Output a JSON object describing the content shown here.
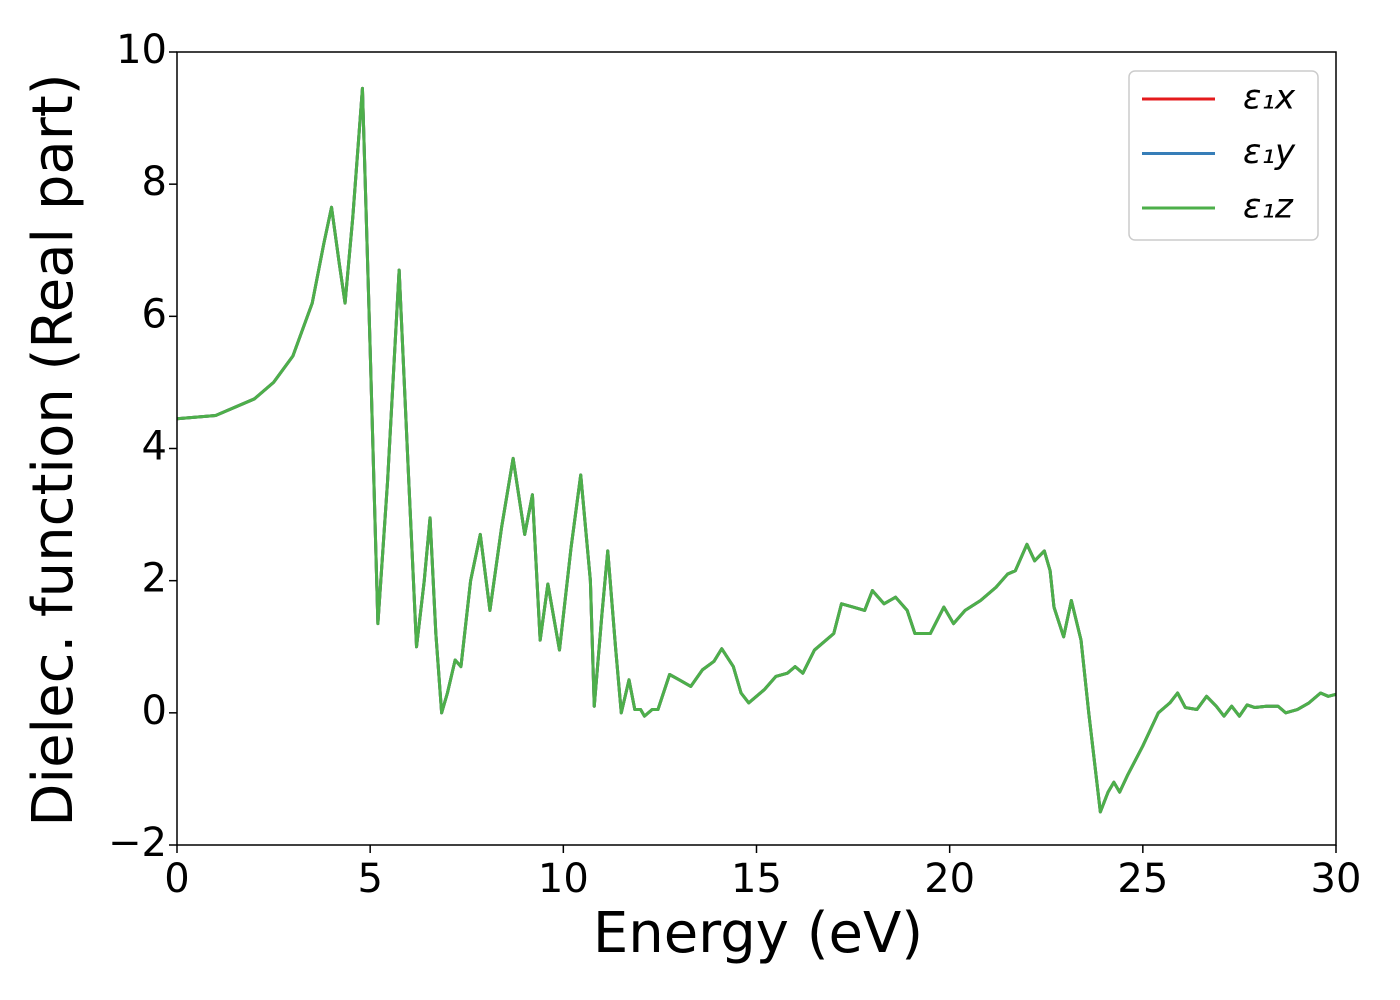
{
  "chart_data": {
    "type": "line",
    "xlabel": "Energy (eV)",
    "ylabel": "Dielec. function (Real part)",
    "x": [
      0,
      1,
      2,
      2.5,
      3,
      3.5,
      3.8,
      4.0,
      4.2,
      4.35,
      4.55,
      4.8,
      5.0,
      5.2,
      5.45,
      5.75,
      6.0,
      6.2,
      6.4,
      6.55,
      6.7,
      6.85,
      7.0,
      7.2,
      7.35,
      7.6,
      7.85,
      8.1,
      8.4,
      8.7,
      9.0,
      9.2,
      9.4,
      9.6,
      9.9,
      10.2,
      10.45,
      10.7,
      10.8,
      11.0,
      11.15,
      11.35,
      11.5,
      11.7,
      11.85,
      12.0,
      12.1,
      12.3,
      12.45,
      12.75,
      13.0,
      13.3,
      13.6,
      13.9,
      14.1,
      14.4,
      14.6,
      14.8,
      15.2,
      15.5,
      15.8,
      16.0,
      16.2,
      16.5,
      17.0,
      17.2,
      17.5,
      17.8,
      18.0,
      18.3,
      18.6,
      18.9,
      19.1,
      19.5,
      19.85,
      20.1,
      20.4,
      20.8,
      21.2,
      21.5,
      21.7,
      22.0,
      22.2,
      22.45,
      22.6,
      22.7,
      22.95,
      23.15,
      23.4,
      23.6,
      23.9,
      24.1,
      24.25,
      24.4,
      24.6,
      25.0,
      25.4,
      25.7,
      25.9,
      26.1,
      26.4,
      26.65,
      26.9,
      27.1,
      27.3,
      27.5,
      27.7,
      27.9,
      28.2,
      28.5,
      28.7,
      29.0,
      29.3,
      29.6,
      29.8,
      30.0
    ],
    "series": [
      {
        "name": "ε₁x",
        "color": "#e41a1c",
        "values": [
          4.45,
          4.5,
          4.75,
          5.0,
          5.4,
          6.2,
          7.1,
          7.65,
          6.8,
          6.2,
          7.5,
          9.45,
          5.5,
          1.35,
          3.5,
          6.7,
          3.5,
          1.0,
          2.0,
          2.95,
          1.2,
          0.0,
          0.3,
          0.8,
          0.7,
          2.0,
          2.7,
          1.55,
          2.8,
          3.85,
          2.7,
          3.3,
          1.1,
          1.95,
          0.95,
          2.5,
          3.6,
          2.0,
          0.1,
          1.5,
          2.45,
          1.0,
          0.0,
          0.5,
          0.05,
          0.05,
          -0.05,
          0.05,
          0.05,
          0.58,
          0.5,
          0.4,
          0.65,
          0.78,
          0.97,
          0.7,
          0.3,
          0.15,
          0.35,
          0.55,
          0.6,
          0.7,
          0.6,
          0.95,
          1.2,
          1.65,
          1.6,
          1.55,
          1.85,
          1.65,
          1.75,
          1.55,
          1.2,
          1.2,
          1.6,
          1.35,
          1.55,
          1.7,
          1.9,
          2.1,
          2.15,
          2.55,
          2.3,
          2.45,
          2.15,
          1.6,
          1.15,
          1.7,
          1.1,
          0.0,
          -1.5,
          -1.2,
          -1.05,
          -1.2,
          -0.95,
          -0.5,
          0.0,
          0.15,
          0.3,
          0.08,
          0.05,
          0.25,
          0.1,
          -0.05,
          0.1,
          -0.05,
          0.12,
          0.08,
          0.1,
          0.1,
          0.0,
          0.05,
          0.15,
          0.3,
          0.25,
          0.28
        ]
      },
      {
        "name": "ε₁y",
        "color": "#377eb8",
        "values": [
          4.45,
          4.5,
          4.75,
          5.0,
          5.4,
          6.2,
          7.1,
          7.65,
          6.8,
          6.2,
          7.5,
          9.45,
          5.5,
          1.35,
          3.5,
          6.7,
          3.5,
          1.0,
          2.0,
          2.95,
          1.2,
          0.0,
          0.3,
          0.8,
          0.7,
          2.0,
          2.7,
          1.55,
          2.8,
          3.85,
          2.7,
          3.3,
          1.1,
          1.95,
          0.95,
          2.5,
          3.6,
          2.0,
          0.1,
          1.5,
          2.45,
          1.0,
          0.0,
          0.5,
          0.05,
          0.05,
          -0.05,
          0.05,
          0.05,
          0.58,
          0.5,
          0.4,
          0.65,
          0.78,
          0.97,
          0.7,
          0.3,
          0.15,
          0.35,
          0.55,
          0.6,
          0.7,
          0.6,
          0.95,
          1.2,
          1.65,
          1.6,
          1.55,
          1.85,
          1.65,
          1.75,
          1.55,
          1.2,
          1.2,
          1.6,
          1.35,
          1.55,
          1.7,
          1.9,
          2.1,
          2.15,
          2.55,
          2.3,
          2.45,
          2.15,
          1.6,
          1.15,
          1.7,
          1.1,
          0.0,
          -1.5,
          -1.2,
          -1.05,
          -1.2,
          -0.95,
          -0.5,
          0.0,
          0.15,
          0.3,
          0.08,
          0.05,
          0.25,
          0.1,
          -0.05,
          0.1,
          -0.05,
          0.12,
          0.08,
          0.1,
          0.1,
          0.0,
          0.05,
          0.15,
          0.3,
          0.25,
          0.28
        ]
      },
      {
        "name": "ε₁z",
        "color": "#4daf4a",
        "values": [
          4.45,
          4.5,
          4.75,
          5.0,
          5.4,
          6.2,
          7.1,
          7.65,
          6.8,
          6.2,
          7.5,
          9.45,
          5.5,
          1.35,
          3.5,
          6.7,
          3.5,
          1.0,
          2.0,
          2.95,
          1.2,
          0.0,
          0.3,
          0.8,
          0.7,
          2.0,
          2.7,
          1.55,
          2.8,
          3.85,
          2.7,
          3.3,
          1.1,
          1.95,
          0.95,
          2.5,
          3.6,
          2.0,
          0.1,
          1.5,
          2.45,
          1.0,
          0.0,
          0.5,
          0.05,
          0.05,
          -0.05,
          0.05,
          0.05,
          0.58,
          0.5,
          0.4,
          0.65,
          0.78,
          0.97,
          0.7,
          0.3,
          0.15,
          0.35,
          0.55,
          0.6,
          0.7,
          0.6,
          0.95,
          1.2,
          1.65,
          1.6,
          1.55,
          1.85,
          1.65,
          1.75,
          1.55,
          1.2,
          1.2,
          1.6,
          1.35,
          1.55,
          1.7,
          1.9,
          2.1,
          2.15,
          2.55,
          2.3,
          2.45,
          2.15,
          1.6,
          1.15,
          1.7,
          1.1,
          0.0,
          -1.5,
          -1.2,
          -1.05,
          -1.2,
          -0.95,
          -0.5,
          0.0,
          0.15,
          0.3,
          0.08,
          0.05,
          0.25,
          0.1,
          -0.05,
          0.1,
          -0.05,
          0.12,
          0.08,
          0.1,
          0.1,
          0.0,
          0.05,
          0.15,
          0.3,
          0.25,
          0.28
        ]
      }
    ],
    "xlim": [
      0,
      30
    ],
    "xticks": [
      0,
      5,
      10,
      15,
      20,
      25,
      30
    ],
    "ylim": [
      -2,
      10
    ],
    "yticks": [
      {
        "value": -2,
        "label": "−2"
      },
      0,
      2,
      4,
      6,
      8,
      10
    ],
    "legend": "upper right"
  }
}
